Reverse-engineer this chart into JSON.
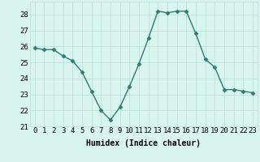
{
  "x": [
    0,
    1,
    2,
    3,
    4,
    5,
    6,
    7,
    8,
    9,
    10,
    11,
    12,
    13,
    14,
    15,
    16,
    17,
    18,
    19,
    20,
    21,
    22,
    23
  ],
  "y": [
    25.9,
    25.8,
    25.8,
    25.4,
    25.1,
    24.4,
    23.2,
    22.0,
    21.4,
    22.2,
    23.5,
    24.9,
    26.5,
    28.2,
    28.1,
    28.2,
    28.2,
    26.8,
    25.2,
    24.7,
    23.3,
    23.3,
    23.2,
    23.1
  ],
  "line_color": "#2e7d6e",
  "marker": "D",
  "marker_size": 2.5,
  "bg_color": "#d8f5f0",
  "grid_color": "#b8ddd8",
  "xlabel": "Humidex (Indice chaleur)",
  "xlim": [
    -0.5,
    23.5
  ],
  "ylim": [
    21.0,
    28.8
  ],
  "yticks": [
    21,
    22,
    23,
    24,
    25,
    26,
    27,
    28
  ],
  "xticks": [
    0,
    1,
    2,
    3,
    4,
    5,
    6,
    7,
    8,
    9,
    10,
    11,
    12,
    13,
    14,
    15,
    16,
    17,
    18,
    19,
    20,
    21,
    22,
    23
  ],
  "xlabel_fontsize": 7,
  "tick_fontsize": 6.5,
  "line_width": 1.0
}
